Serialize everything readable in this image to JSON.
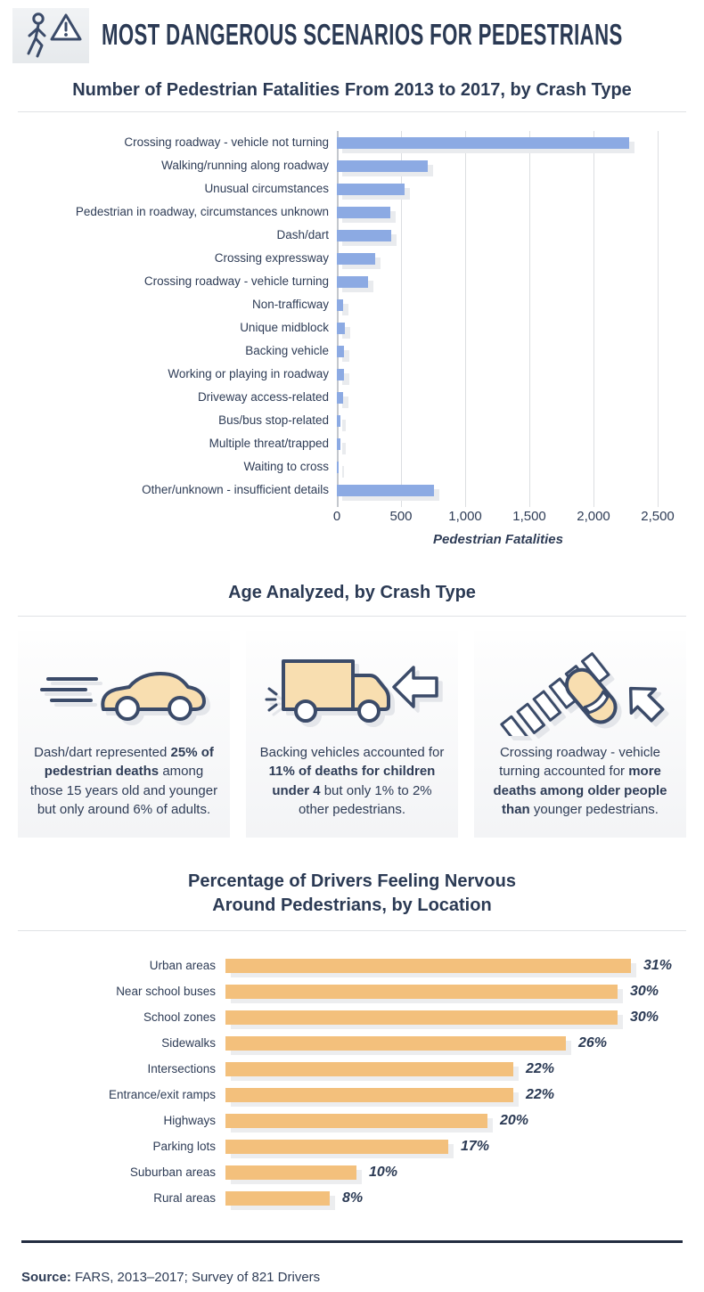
{
  "header": {
    "title": "MOST DANGEROUS SCENARIOS FOR PEDESTRIANS",
    "icon": "pedestrian-warning-icon"
  },
  "colors": {
    "navy_text": "#2e3c56",
    "blue_bar": "#8caae3",
    "orange_bar": "#f3c07c",
    "tan_icon_fill": "#f8deb0",
    "icon_stroke": "#3b4b69",
    "bar_shadow": "#e9ebee",
    "footer_rule": "#222c40",
    "card_bg": "#f3f4f6"
  },
  "chart_data": [
    {
      "type": "bar",
      "orientation": "horizontal",
      "title": "Number of Pedestrian Fatalities From 2013 to 2017, by Crash Type",
      "xlabel": "Pedestrian Fatalities",
      "xlim": [
        0,
        2500
      ],
      "grid": true,
      "legend": "none",
      "bar_color": "#8caae3",
      "xticks": [
        0,
        500,
        1000,
        1500,
        2000,
        2500
      ],
      "xtick_labels": [
        "0",
        "500",
        "1,000",
        "1,500",
        "2,000",
        "2,500"
      ],
      "categories": [
        "Crossing roadway - vehicle not turning",
        "Walking/running along roadway",
        "Unusual circumstances",
        "Pedestrian in roadway, circumstances unknown",
        "Dash/dart",
        "Crossing expressway",
        "Crossing roadway - vehicle turning",
        "Non-trafficway",
        "Unique midblock",
        "Backing vehicle",
        "Working or playing in roadway",
        "Driveway access-related",
        "Bus/bus stop-related",
        "Multiple threat/trapped",
        "Waiting to cross",
        "Other/unknown - insufficient details"
      ],
      "values": [
        2280,
        710,
        530,
        420,
        425,
        300,
        245,
        50,
        65,
        55,
        55,
        50,
        25,
        25,
        10,
        760
      ]
    },
    {
      "type": "bar",
      "orientation": "horizontal",
      "title": "Percentage of Drivers Feeling Nervous Around Pedestrians, by Location",
      "title_lines": [
        "Percentage of Drivers Feeling Nervous",
        "Around Pedestrians, by Location"
      ],
      "xlim": [
        0,
        31
      ],
      "grid": false,
      "legend": "none",
      "bar_color": "#f3c07c",
      "categories": [
        "Urban areas",
        "Near school buses",
        "School zones",
        "Sidewalks",
        "Intersections",
        "Entrance/exit ramps",
        "Highways",
        "Parking lots",
        "Suburban areas",
        "Rural areas"
      ],
      "values": [
        31,
        30,
        30,
        26,
        22,
        22,
        20,
        17,
        10,
        8
      ],
      "value_labels": [
        "31%",
        "30%",
        "30%",
        "26%",
        "22%",
        "22%",
        "20%",
        "17%",
        "10%",
        "8%"
      ]
    }
  ],
  "age_section": {
    "title": "Age Analyzed, by Crash Type",
    "cards": [
      {
        "icon": "speeding-car-icon",
        "segments": [
          {
            "text": "Dash/dart represented ",
            "bold": false
          },
          {
            "text": "25% of pedestrian deaths",
            "bold": true
          },
          {
            "text": " among those 15 years old and younger but only around 6% of adults.",
            "bold": false
          }
        ]
      },
      {
        "icon": "backing-truck-icon",
        "segments": [
          {
            "text": "Backing vehicles accounted for ",
            "bold": false
          },
          {
            "text": "11% of deaths for children under 4",
            "bold": true
          },
          {
            "text": " but only 1% to 2% other pedestrians.",
            "bold": false
          }
        ]
      },
      {
        "icon": "crosswalk-turning-car-icon",
        "segments": [
          {
            "text": "Crossing roadway - vehicle turning accounted for ",
            "bold": false
          },
          {
            "text": "more deaths among older people than",
            "bold": true
          },
          {
            "text": " younger pedestrians.",
            "bold": false
          }
        ]
      }
    ]
  },
  "footer": {
    "source_label": "Source:",
    "source_text": "FARS, 2013–2017; Survey of 821 Drivers"
  }
}
